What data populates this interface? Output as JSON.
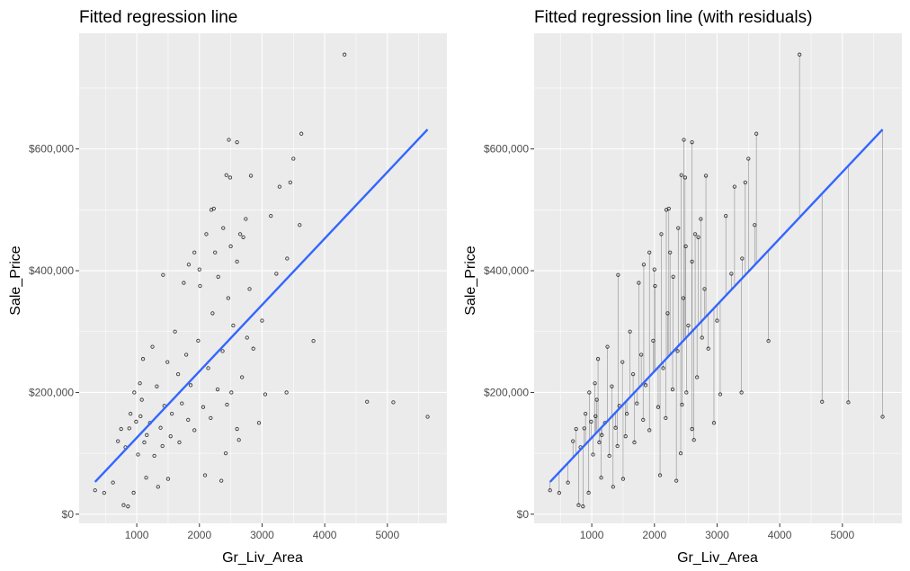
{
  "chart_data": [
    {
      "type": "scatter",
      "title": "Fitted regression line",
      "xlabel": "Gr_Liv_Area",
      "ylabel": "Sale_Price",
      "xlim": [
        80,
        5950
      ],
      "ylim": [
        -15000,
        790000
      ],
      "x_ticks": [
        1000,
        2000,
        3000,
        4000,
        5000
      ],
      "x_tick_labels": [
        "1000",
        "2000",
        "3000",
        "4000",
        "5000"
      ],
      "y_ticks": [
        0,
        200000,
        400000,
        600000
      ],
      "y_tick_labels": [
        "$0",
        "$200,000",
        "$400,000",
        "$600,000"
      ],
      "grid": true,
      "point_color": "#000000",
      "line_color": "#3366FF",
      "residuals": false,
      "fit_line": {
        "x": [
          334,
          5642
        ],
        "y": [
          53000,
          632000
        ]
      },
      "points": [
        [
          4316,
          755000
        ],
        [
          2470,
          615000
        ],
        [
          2600,
          611000
        ],
        [
          3627,
          625000
        ],
        [
          3500,
          584000
        ],
        [
          3279,
          538000
        ],
        [
          3450,
          545000
        ],
        [
          2822,
          556000
        ],
        [
          2430,
          557000
        ],
        [
          2490,
          553000
        ],
        [
          2230,
          502000
        ],
        [
          2190,
          500000
        ],
        [
          2740,
          485000
        ],
        [
          2110,
          460000
        ],
        [
          3140,
          490000
        ],
        [
          3820,
          284700
        ],
        [
          4676,
          184750
        ],
        [
          5095,
          183850
        ],
        [
          5642,
          160000
        ],
        [
          3390,
          200000
        ],
        [
          2950,
          150000
        ],
        [
          3050,
          197000
        ],
        [
          3600,
          475000
        ],
        [
          3400,
          420000
        ],
        [
          3228,
          395000
        ],
        [
          2650,
          460000
        ],
        [
          2700,
          455000
        ],
        [
          2500,
          440000
        ],
        [
          2250,
          430000
        ],
        [
          2380,
          470000
        ],
        [
          2600,
          415000
        ],
        [
          2800,
          370000
        ],
        [
          2460,
          355000
        ],
        [
          2300,
          390000
        ],
        [
          1920,
          430000
        ],
        [
          2000,
          402000
        ],
        [
          1830,
          410000
        ],
        [
          1420,
          393000
        ],
        [
          2010,
          375000
        ],
        [
          1750,
          380000
        ],
        [
          334,
          39300
        ],
        [
          480,
          35000
        ],
        [
          620,
          52000
        ],
        [
          790,
          15000
        ],
        [
          860,
          12789
        ],
        [
          950,
          35311
        ],
        [
          1150,
          60000
        ],
        [
          1340,
          45000
        ],
        [
          1500,
          58000
        ],
        [
          2090,
          64000
        ],
        [
          2350,
          55000
        ],
        [
          2630,
          122000
        ],
        [
          2420,
          100000
        ],
        [
          2600,
          140000
        ],
        [
          1100,
          255000
        ],
        [
          1250,
          275000
        ],
        [
          960,
          200000
        ],
        [
          1050,
          215000
        ],
        [
          700,
          120000
        ],
        [
          750,
          140000
        ],
        [
          900,
          165000
        ],
        [
          820,
          110000
        ],
        [
          1080,
          188000
        ],
        [
          1160,
          130000
        ],
        [
          1210,
          150000
        ],
        [
          1320,
          210000
        ],
        [
          1380,
          142000
        ],
        [
          1440,
          178000
        ],
        [
          1490,
          250000
        ],
        [
          1560,
          165000
        ],
        [
          1610,
          300000
        ],
        [
          1660,
          230000
        ],
        [
          1720,
          182000
        ],
        [
          1790,
          262000
        ],
        [
          1860,
          212000
        ],
        [
          1920,
          138000
        ],
        [
          1980,
          285000
        ],
        [
          2060,
          176000
        ],
        [
          2140,
          240000
        ],
        [
          2210,
          330000
        ],
        [
          2290,
          205000
        ],
        [
          2370,
          268000
        ],
        [
          2440,
          180000
        ],
        [
          2540,
          310000
        ],
        [
          2680,
          225000
        ],
        [
          2760,
          290000
        ],
        [
          2860,
          272000
        ],
        [
          3000,
          318000
        ],
        [
          1020,
          98000
        ],
        [
          1120,
          118000
        ],
        [
          1280,
          96000
        ],
        [
          1410,
          112000
        ],
        [
          1540,
          128000
        ],
        [
          1680,
          118000
        ],
        [
          1820,
          155000
        ],
        [
          2180,
          158000
        ],
        [
          2510,
          200000
        ],
        [
          880,
          141000
        ],
        [
          990,
          152000
        ],
        [
          1060,
          161000
        ]
      ]
    },
    {
      "type": "scatter",
      "title": "Fitted regression line (with residuals)",
      "xlabel": "Gr_Liv_Area",
      "ylabel": "Sale_Price",
      "xlim": [
        80,
        5950
      ],
      "ylim": [
        -15000,
        790000
      ],
      "x_ticks": [
        1000,
        2000,
        3000,
        4000,
        5000
      ],
      "x_tick_labels": [
        "1000",
        "2000",
        "3000",
        "4000",
        "5000"
      ],
      "y_ticks": [
        0,
        200000,
        400000,
        600000
      ],
      "y_tick_labels": [
        "$0",
        "$200,000",
        "$400,000",
        "$600,000"
      ],
      "grid": true,
      "point_color": "#000000",
      "line_color": "#3366FF",
      "residual_color": "#666666",
      "residuals": true,
      "fit_line": {
        "x": [
          334,
          5642
        ],
        "y": [
          53000,
          632000
        ]
      },
      "points": [
        [
          4316,
          755000
        ],
        [
          2470,
          615000
        ],
        [
          2600,
          611000
        ],
        [
          3627,
          625000
        ],
        [
          3500,
          584000
        ],
        [
          3279,
          538000
        ],
        [
          3450,
          545000
        ],
        [
          2822,
          556000
        ],
        [
          2430,
          557000
        ],
        [
          2490,
          553000
        ],
        [
          2230,
          502000
        ],
        [
          2190,
          500000
        ],
        [
          2740,
          485000
        ],
        [
          2110,
          460000
        ],
        [
          3140,
          490000
        ],
        [
          3820,
          284700
        ],
        [
          4676,
          184750
        ],
        [
          5095,
          183850
        ],
        [
          5642,
          160000
        ],
        [
          3390,
          200000
        ],
        [
          2950,
          150000
        ],
        [
          3050,
          197000
        ],
        [
          3600,
          475000
        ],
        [
          3400,
          420000
        ],
        [
          3228,
          395000
        ],
        [
          2650,
          460000
        ],
        [
          2700,
          455000
        ],
        [
          2500,
          440000
        ],
        [
          2250,
          430000
        ],
        [
          2380,
          470000
        ],
        [
          2600,
          415000
        ],
        [
          2800,
          370000
        ],
        [
          2460,
          355000
        ],
        [
          2300,
          390000
        ],
        [
          1920,
          430000
        ],
        [
          2000,
          402000
        ],
        [
          1830,
          410000
        ],
        [
          1420,
          393000
        ],
        [
          2010,
          375000
        ],
        [
          1750,
          380000
        ],
        [
          334,
          39300
        ],
        [
          480,
          35000
        ],
        [
          620,
          52000
        ],
        [
          790,
          15000
        ],
        [
          860,
          12789
        ],
        [
          950,
          35311
        ],
        [
          1150,
          60000
        ],
        [
          1340,
          45000
        ],
        [
          1500,
          58000
        ],
        [
          2090,
          64000
        ],
        [
          2350,
          55000
        ],
        [
          2630,
          122000
        ],
        [
          2420,
          100000
        ],
        [
          2600,
          140000
        ],
        [
          1100,
          255000
        ],
        [
          1250,
          275000
        ],
        [
          960,
          200000
        ],
        [
          1050,
          215000
        ],
        [
          700,
          120000
        ],
        [
          750,
          140000
        ],
        [
          900,
          165000
        ],
        [
          820,
          110000
        ],
        [
          1080,
          188000
        ],
        [
          1160,
          130000
        ],
        [
          1210,
          150000
        ],
        [
          1320,
          210000
        ],
        [
          1380,
          142000
        ],
        [
          1440,
          178000
        ],
        [
          1490,
          250000
        ],
        [
          1560,
          165000
        ],
        [
          1610,
          300000
        ],
        [
          1660,
          230000
        ],
        [
          1720,
          182000
        ],
        [
          1790,
          262000
        ],
        [
          1860,
          212000
        ],
        [
          1920,
          138000
        ],
        [
          1980,
          285000
        ],
        [
          2060,
          176000
        ],
        [
          2140,
          240000
        ],
        [
          2210,
          330000
        ],
        [
          2290,
          205000
        ],
        [
          2370,
          268000
        ],
        [
          2440,
          180000
        ],
        [
          2540,
          310000
        ],
        [
          2680,
          225000
        ],
        [
          2760,
          290000
        ],
        [
          2860,
          272000
        ],
        [
          3000,
          318000
        ],
        [
          1020,
          98000
        ],
        [
          1120,
          118000
        ],
        [
          1280,
          96000
        ],
        [
          1410,
          112000
        ],
        [
          1540,
          128000
        ],
        [
          1680,
          118000
        ],
        [
          1820,
          155000
        ],
        [
          2180,
          158000
        ],
        [
          2510,
          200000
        ],
        [
          880,
          141000
        ],
        [
          990,
          152000
        ],
        [
          1060,
          161000
        ]
      ]
    }
  ]
}
